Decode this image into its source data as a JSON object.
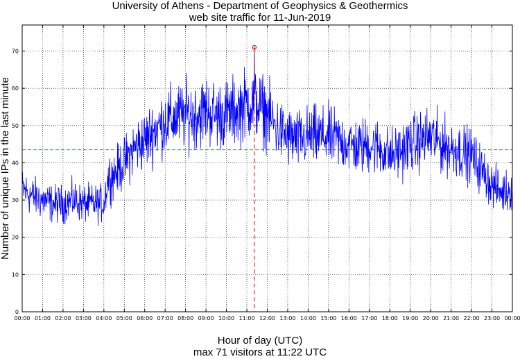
{
  "chart_data": {
    "type": "line",
    "title": "University of Athens - Department of Geophysics & Geothermics",
    "subtitle": "web site traffic for 11-Jun-2019",
    "xlabel": "Hour of day (UTC)",
    "ylabel": "Number of unique IPs in the last minute",
    "footer": "max 71 visitors at 11:22 UTC",
    "x_ticks": [
      "00:00",
      "01:00",
      "02:00",
      "03:00",
      "04:00",
      "05:00",
      "06:00",
      "07:00",
      "08:00",
      "09:00",
      "10:00",
      "11:00",
      "12:00",
      "13:00",
      "14:00",
      "15:00",
      "16:00",
      "17:00",
      "18:00",
      "19:00",
      "20:00",
      "21:00",
      "22:00",
      "23:00",
      "00:00"
    ],
    "y_ticks": [
      0,
      10,
      20,
      30,
      40,
      50,
      60,
      70
    ],
    "xlim": [
      0,
      24
    ],
    "ylim": [
      0,
      77
    ],
    "grid": true,
    "mean_line": 43.5,
    "max_point": {
      "hour": 11.3667,
      "value": 71
    },
    "colors": {
      "series": "#0000ff",
      "mean": "#00cc00",
      "max": "#ff0000"
    },
    "hourly_trend": {
      "x": [
        0,
        0.5,
        1,
        1.5,
        2,
        2.5,
        3,
        3.5,
        4,
        4.2,
        4.5,
        5,
        5.5,
        6,
        6.5,
        7,
        7.5,
        8,
        8.5,
        9,
        9.5,
        10,
        10.5,
        11,
        11.5,
        12,
        12.5,
        13,
        13.5,
        14,
        14.5,
        15,
        15.5,
        16,
        16.5,
        17,
        17.5,
        18,
        18.5,
        19,
        19.5,
        20,
        20.5,
        21,
        21.5,
        22,
        22.5,
        23,
        23.5,
        24
      ],
      "y": [
        33,
        31,
        30,
        29,
        29,
        30,
        29,
        29,
        29,
        36,
        37,
        40,
        44,
        46,
        49,
        51,
        52,
        53,
        53,
        54,
        53,
        53,
        54,
        56,
        56,
        53,
        49,
        47,
        46,
        47,
        47,
        47,
        46,
        45,
        44,
        45,
        44,
        42,
        43,
        45,
        46,
        47,
        45,
        44,
        43,
        42,
        38,
        34,
        32,
        33
      ]
    }
  }
}
